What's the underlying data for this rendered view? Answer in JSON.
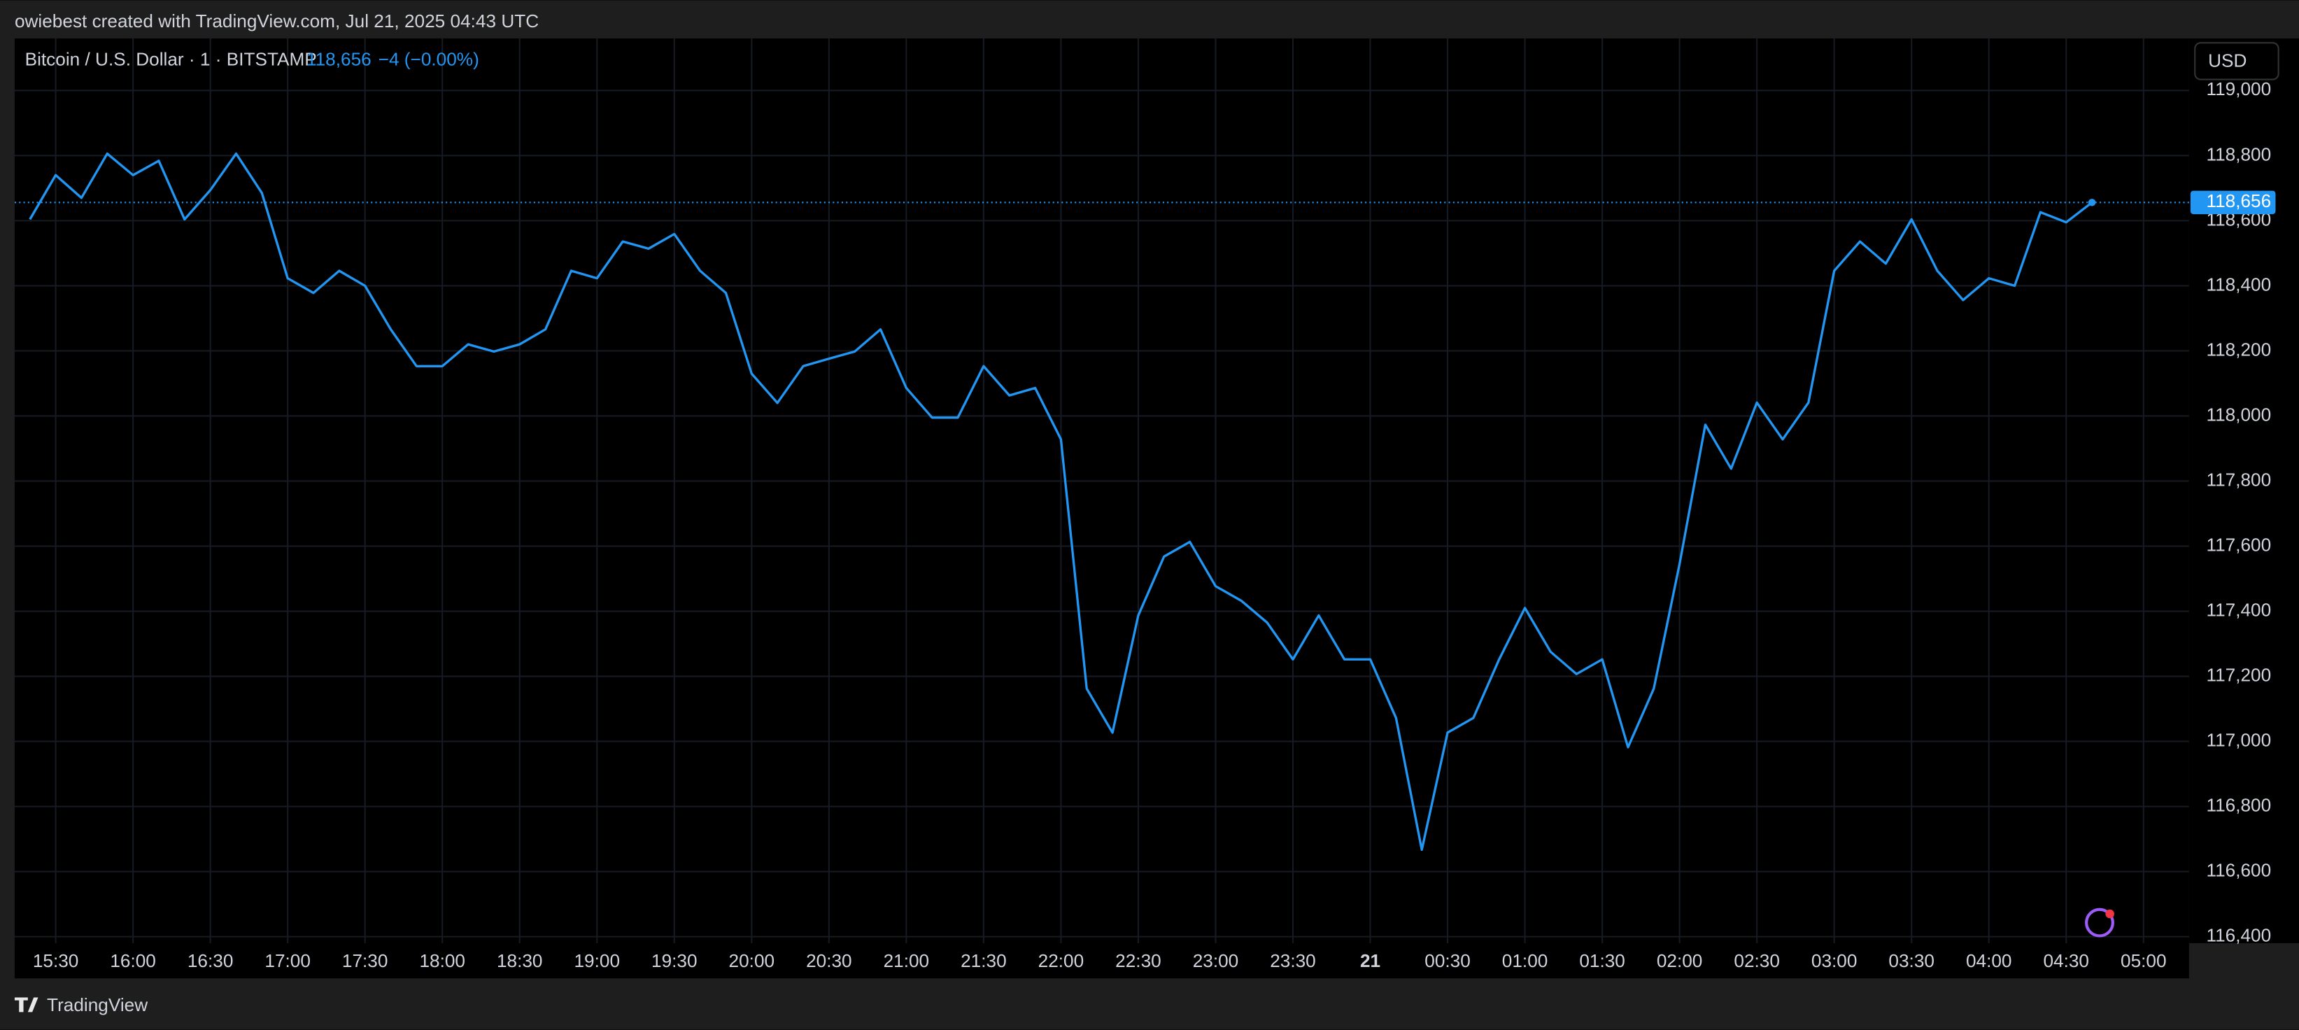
{
  "header": {
    "attribution": "owiebest created with TradingView.com, Jul 21, 2025 04:43 UTC"
  },
  "chart_data": {
    "type": "line",
    "title": "Bitcoin / U.S. Dollar · 1 · BITSTAMP",
    "price": {
      "value": 118656,
      "label": "118,656"
    },
    "change": "−4 (−0.00%)",
    "currency": "USD",
    "color": "#2196f3",
    "grid": true,
    "x": [
      "15:20",
      "15:30",
      "15:40",
      "15:50",
      "16:00",
      "16:10",
      "16:20",
      "16:30",
      "16:40",
      "16:50",
      "17:00",
      "17:10",
      "17:20",
      "17:30",
      "17:40",
      "17:50",
      "18:00",
      "18:10",
      "18:20",
      "18:30",
      "18:40",
      "18:50",
      "19:00",
      "19:10",
      "19:20",
      "19:30",
      "19:40",
      "19:50",
      "20:00",
      "20:10",
      "20:20",
      "20:30",
      "20:40",
      "20:50",
      "21:00",
      "21:10",
      "21:20",
      "21:30",
      "21:40",
      "21:50",
      "22:00",
      "22:10",
      "22:20",
      "22:30",
      "22:40",
      "22:50",
      "23:00",
      "23:10",
      "23:20",
      "23:30",
      "23:40",
      "23:50",
      "00:00",
      "00:10",
      "00:20",
      "00:30",
      "00:40",
      "00:50",
      "01:00",
      "01:10",
      "01:20",
      "01:30",
      "01:40",
      "01:50",
      "02:00",
      "02:10",
      "02:20",
      "02:30",
      "02:40",
      "02:50",
      "03:00",
      "03:10",
      "03:20",
      "03:30",
      "03:40",
      "03:50",
      "04:00",
      "04:10",
      "04:20",
      "04:30",
      "04:40",
      "04:50",
      "05:00"
    ],
    "values": [
      118604,
      118740,
      118670,
      118806,
      118740,
      118784,
      118604,
      118694,
      118806,
      118685,
      118423,
      118378,
      118446,
      118400,
      118266,
      118153,
      118153,
      118220,
      118198,
      118220,
      118266,
      118446,
      118423,
      118536,
      118514,
      118559,
      118446,
      118378,
      118130,
      118040,
      118153,
      118176,
      118198,
      118266,
      118086,
      117995,
      117995,
      118153,
      118063,
      118086,
      117928,
      117162,
      117027,
      117387,
      117568,
      117613,
      117477,
      117432,
      117365,
      117252,
      117387,
      117252,
      117252,
      117072,
      116667,
      117027,
      117072,
      117252,
      117410,
      117275,
      117207,
      117252,
      116982,
      117162,
      117545,
      117973,
      117838,
      118041,
      117928,
      118041,
      118446,
      118536,
      118468,
      118604,
      118446,
      118356,
      118423,
      118400,
      118626,
      118595,
      118656,
      null,
      null
    ],
    "ylim": [
      116380,
      119160
    ],
    "yticks": [
      {
        "value": 116400,
        "label": "116,400"
      },
      {
        "value": 116600,
        "label": "116,600"
      },
      {
        "value": 116800,
        "label": "116,800"
      },
      {
        "value": 117000,
        "label": "117,000"
      },
      {
        "value": 117200,
        "label": "117,200"
      },
      {
        "value": 117400,
        "label": "117,400"
      },
      {
        "value": 117600,
        "label": "117,600"
      },
      {
        "value": 117800,
        "label": "117,800"
      },
      {
        "value": 118000,
        "label": "118,000"
      },
      {
        "value": 118200,
        "label": "118,200"
      },
      {
        "value": 118400,
        "label": "118,400"
      },
      {
        "value": 118600,
        "label": "118,600"
      },
      {
        "value": 118800,
        "label": "118,800"
      },
      {
        "value": 119000,
        "label": "119,000"
      }
    ],
    "xticks": [
      "15:30",
      "16:00",
      "16:30",
      "17:00",
      "17:30",
      "18:00",
      "18:30",
      "19:00",
      "19:30",
      "20:00",
      "20:30",
      "21:00",
      "21:30",
      "22:00",
      "22:30",
      "23:00",
      "23:30",
      {
        "value": "00:00",
        "label": "21"
      },
      "00:30",
      "01:00",
      "01:30",
      "02:00",
      "02:30",
      "03:00",
      "03:30",
      "04:00",
      "04:30",
      "05:00"
    ]
  },
  "footer": {
    "brand": "TradingView"
  }
}
